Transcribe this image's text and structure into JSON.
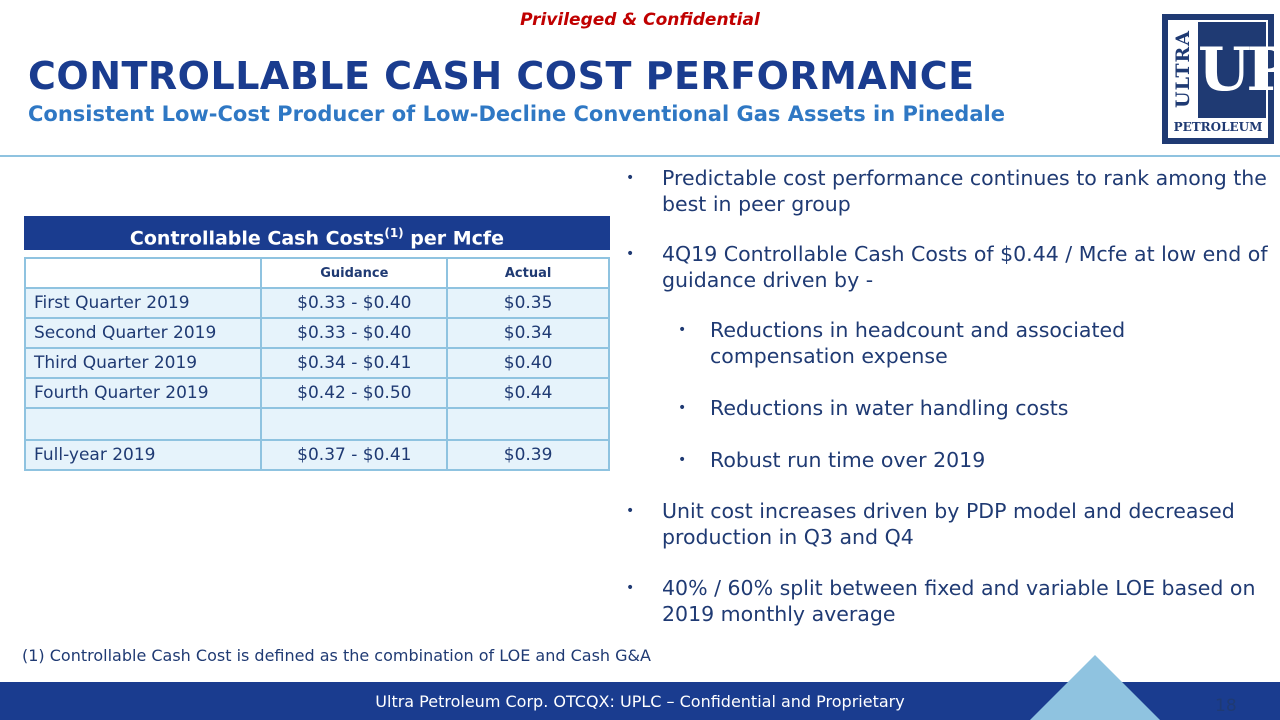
{
  "header": {
    "confidential": "Privileged & Confidential",
    "title": "CONTROLLABLE CASH COST PERFORMANCE",
    "subtitle": "Consistent Low-Cost Producer of Low-Decline Conventional Gas Assets in Pinedale"
  },
  "logo": {
    "ultra": "ULTRA",
    "up": "UP",
    "petroleum": "PETROLEUM"
  },
  "table": {
    "title_main": "Controllable Cash Costs",
    "title_sup": "(1)",
    "title_suffix": " per Mcfe",
    "headers": [
      "",
      "Guidance",
      "Actual"
    ],
    "rows": [
      {
        "label": "First Quarter 2019",
        "guidance": "$0.33 - $0.40",
        "actual": "$0.35"
      },
      {
        "label": "Second Quarter 2019",
        "guidance": "$0.33 - $0.40",
        "actual": "$0.34"
      },
      {
        "label": "Third Quarter 2019",
        "guidance": "$0.34 - $0.41",
        "actual": "$0.40"
      },
      {
        "label": "Fourth Quarter 2019",
        "guidance": "$0.42 - $0.50",
        "actual": "$0.44"
      },
      {
        "label": "",
        "guidance": "",
        "actual": ""
      },
      {
        "label": "Full-year 2019",
        "guidance": "$0.37 - $0.41",
        "actual": "$0.39"
      }
    ]
  },
  "bullets": {
    "b1": "Predictable cost performance continues to rank among the best in peer group",
    "b2": "4Q19 Controllable Cash Costs of $0.44 / Mcfe at low end of guidance driven by -",
    "b2a": "Reductions in headcount and associated compensation expense",
    "b2b": "Reductions in water handling costs",
    "b2c": "Robust run time over 2019",
    "b3": "Unit cost increases driven by PDP model and decreased production in Q3 and Q4",
    "b4": "40% / 60% split between fixed and variable LOE based on 2019 monthly average",
    "bullet_char": "•"
  },
  "footnote": "(1) Controllable Cash Cost is defined as the combination of LOE and Cash G&A",
  "footer": {
    "text": "Ultra Petroleum Corp. OTCQX: UPLC – Confidential and Proprietary",
    "page_number": "18"
  },
  "colors": {
    "navy": "#1a3c8f",
    "text": "#1f3a73",
    "accent_blue": "#2f78c4",
    "confidential_red": "#c00000",
    "table_fill": "#e6f3fb",
    "table_border": "#8fc3e0"
  }
}
